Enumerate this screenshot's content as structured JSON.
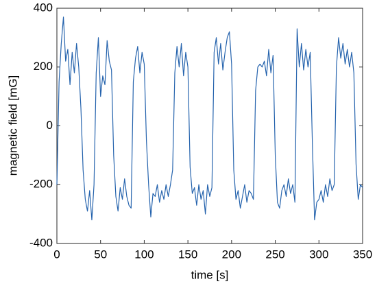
{
  "chart_data": {
    "type": "line",
    "xlabel": "time [s]",
    "ylabel": "magnetic field [mG]",
    "x": [
      0,
      2.5,
      5,
      7.5,
      10,
      12.5,
      15,
      17.5,
      20,
      22.5,
      25,
      27.5,
      30,
      32.5,
      35,
      37.5,
      40,
      42.5,
      45,
      47.5,
      50,
      52.5,
      55,
      57.5,
      60,
      62.5,
      65,
      67.5,
      70,
      72.5,
      75,
      77.5,
      80,
      82.5,
      85,
      87.5,
      90,
      92.5,
      95,
      97.5,
      100,
      102.5,
      105,
      107.5,
      110,
      112.5,
      115,
      117.5,
      120,
      122.5,
      125,
      127.5,
      130,
      132.5,
      135,
      137.5,
      140,
      142.5,
      145,
      147.5,
      150,
      152.5,
      155,
      157.5,
      160,
      162.5,
      165,
      167.5,
      170,
      172.5,
      175,
      177.5,
      180,
      182.5,
      185,
      187.5,
      190,
      192.5,
      195,
      197.5,
      200,
      202.5,
      205,
      207.5,
      210,
      212.5,
      215,
      217.5,
      220,
      222.5,
      225,
      227.5,
      230,
      232.5,
      235,
      237.5,
      240,
      242.5,
      245,
      247.5,
      250,
      252.5,
      255,
      257.5,
      260,
      262.5,
      265,
      267.5,
      270,
      272.5,
      275,
      277.5,
      280,
      282.5,
      285,
      287.5,
      290,
      292.5,
      295,
      297.5,
      300,
      302.5,
      305,
      307.5,
      310,
      312.5,
      315,
      317.5,
      320,
      322.5,
      325,
      327.5,
      330,
      332.5,
      335,
      337.5,
      340,
      342.5,
      345,
      347.5,
      350
    ],
    "series": [
      {
        "name": "magnetic field",
        "color": "#2563ad",
        "values": [
          -200,
          150,
          280,
          370,
          220,
          260,
          140,
          250,
          180,
          280,
          200,
          60,
          -150,
          -250,
          -290,
          -220,
          -320,
          -200,
          180,
          300,
          100,
          170,
          140,
          290,
          220,
          190,
          -100,
          -240,
          -290,
          -210,
          -250,
          -180,
          -240,
          -270,
          -280,
          150,
          230,
          270,
          180,
          250,
          210,
          -50,
          -200,
          -310,
          -230,
          -240,
          -200,
          -260,
          -220,
          -250,
          -200,
          -240,
          -200,
          -150,
          180,
          270,
          200,
          280,
          170,
          250,
          200,
          -140,
          -230,
          -210,
          -270,
          -200,
          -250,
          -220,
          -300,
          -200,
          -240,
          -210,
          250,
          300,
          210,
          280,
          190,
          250,
          300,
          320,
          210,
          -150,
          -250,
          -220,
          -280,
          -240,
          -200,
          -260,
          -220,
          -230,
          -250,
          120,
          200,
          210,
          200,
          220,
          170,
          260,
          180,
          240,
          -100,
          -260,
          -280,
          -220,
          -200,
          -240,
          -180,
          -230,
          -200,
          -260,
          330,
          200,
          280,
          190,
          260,
          200,
          250,
          -60,
          -320,
          -260,
          -250,
          -220,
          -260,
          -200,
          -240,
          -180,
          -220,
          -200,
          200,
          300,
          230,
          280,
          210,
          260,
          200,
          250,
          180,
          -130,
          -250,
          -200,
          -210
        ]
      }
    ],
    "xlim": [
      0,
      350
    ],
    "xticks": [
      0,
      50,
      100,
      150,
      200,
      250,
      300,
      350
    ],
    "ylim": [
      -400,
      400
    ],
    "yticks": [
      -400,
      -200,
      0,
      200,
      400
    ]
  }
}
